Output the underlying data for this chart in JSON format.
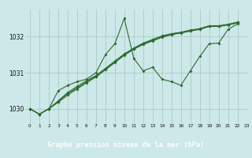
{
  "title": "Graphe pression niveau de la mer (hPa)",
  "bg_color": "#cce8e8",
  "label_bg_color": "#2d6a2d",
  "grid_color": "#b0c8c8",
  "line_color": "#2d6a2d",
  "series": {
    "line1": [
      1030.0,
      1029.85,
      1030.0,
      1030.5,
      1030.65,
      1030.75,
      1030.82,
      1031.0,
      1031.5,
      1031.8,
      1032.5,
      1031.4,
      1031.05,
      1031.15,
      1030.82,
      1030.75,
      1030.65,
      1031.05,
      1031.45,
      1031.8,
      1031.82,
      1032.2,
      1032.35
    ],
    "line2": [
      1030.0,
      1029.85,
      1030.0,
      1030.18,
      1030.38,
      1030.55,
      1030.72,
      1030.88,
      1031.08,
      1031.28,
      1031.48,
      1031.65,
      1031.78,
      1031.88,
      1031.98,
      1032.05,
      1032.1,
      1032.15,
      1032.2,
      1032.28,
      1032.28,
      1032.32,
      1032.38
    ],
    "line3": [
      1030.0,
      1029.85,
      1030.0,
      1030.22,
      1030.45,
      1030.62,
      1030.78,
      1030.92,
      1031.12,
      1031.32,
      1031.52,
      1031.68,
      1031.82,
      1031.92,
      1032.02,
      1032.08,
      1032.12,
      1032.18,
      1032.22,
      1032.3,
      1032.3,
      1032.34,
      1032.4
    ],
    "line4": [
      1030.0,
      1029.85,
      1030.0,
      1030.2,
      1030.42,
      1030.58,
      1030.75,
      1030.9,
      1031.1,
      1031.3,
      1031.5,
      1031.66,
      1031.8,
      1031.9,
      1032.0,
      1032.06,
      1032.11,
      1032.16,
      1032.21,
      1032.29,
      1032.29,
      1032.33,
      1032.39
    ]
  },
  "xlim": [
    -0.5,
    23
  ],
  "ylim": [
    1029.6,
    1032.75
  ],
  "yticks": [
    1030,
    1031,
    1032
  ],
  "xticks": [
    0,
    1,
    2,
    3,
    4,
    5,
    6,
    7,
    8,
    9,
    10,
    11,
    12,
    13,
    14,
    15,
    16,
    17,
    18,
    19,
    20,
    21,
    22,
    23
  ]
}
